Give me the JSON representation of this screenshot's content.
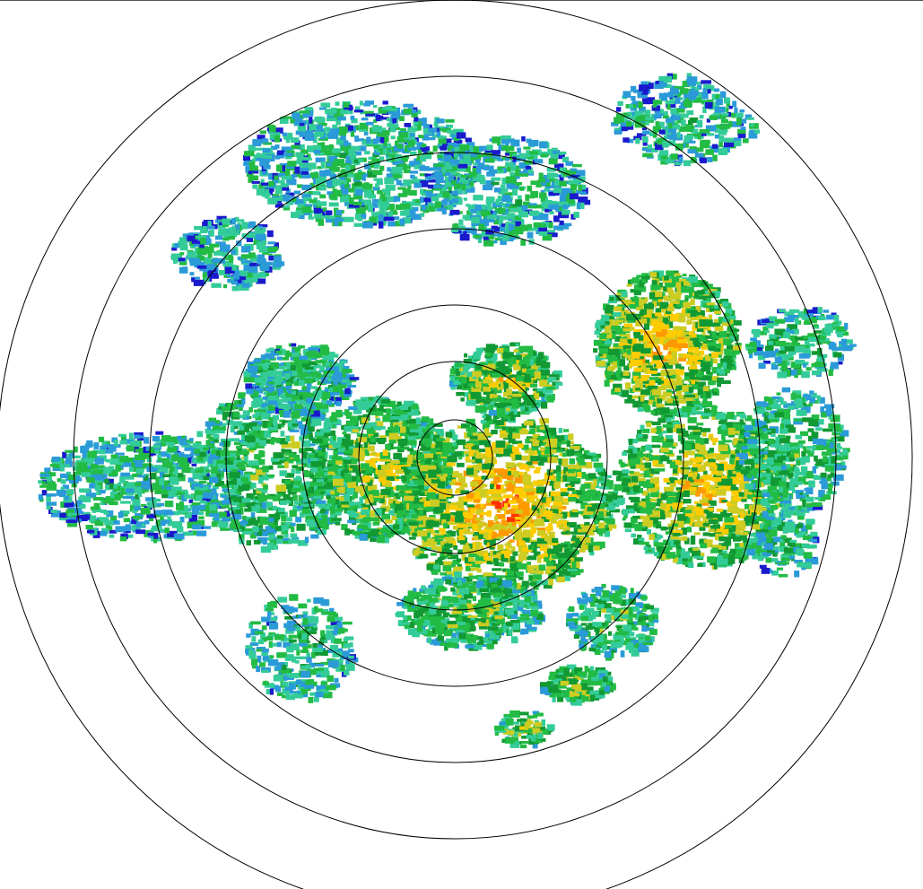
{
  "radar": {
    "view": "plan-position-indicator",
    "range_ring_count": 7,
    "ring_color": "#000000",
    "background": "#ffffff",
    "reflectivity_palette": [
      "#1a1acc",
      "#2a9ad8",
      "#33cc99",
      "#22bb44",
      "#119933",
      "#cccc22",
      "#ffcc00",
      "#ff9900",
      "#ff3300",
      "#ee0000"
    ]
  }
}
